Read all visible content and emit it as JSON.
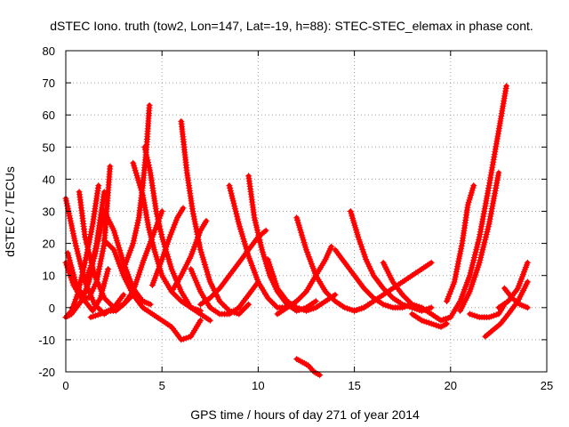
{
  "chart_data": {
    "type": "scatter",
    "title": "dSTEC Iono. truth (tow2, Lon=147, Lat=-19, h=88): STEC-STEC_elemax in phase cont.",
    "xlabel": "GPS time / hours of day 271 of year 2014",
    "ylabel": "dSTEC  / TECUs",
    "xlim": [
      0,
      25
    ],
    "ylim": [
      -20,
      80
    ],
    "x_ticks": [
      "0",
      "5",
      "10",
      "15",
      "20",
      "25"
    ],
    "y_ticks": [
      "-20",
      "-10",
      "0",
      "10",
      "20",
      "30",
      "40",
      "50",
      "60",
      "70",
      "80"
    ],
    "grid": true,
    "marker": "plus",
    "marker_color": "#ff0000",
    "series": [
      {
        "x": [
          0.0,
          0.5,
          1.0,
          1.5,
          2.0,
          2.5,
          3.0
        ],
        "values": [
          34,
          20,
          8,
          1,
          -2,
          0,
          4
        ]
      },
      {
        "x": [
          0.1,
          0.5,
          1.0,
          1.4,
          1.8,
          2.2
        ],
        "values": [
          17,
          8,
          2,
          -1,
          3,
          12
        ]
      },
      {
        "x": [
          0.0,
          0.3,
          0.8,
          1.2,
          1.6,
          2.0
        ],
        "values": [
          -3,
          -2,
          2,
          8,
          20,
          36
        ]
      },
      {
        "x": [
          0.0,
          0.4,
          0.8,
          1.2,
          1.6,
          2.0,
          2.3
        ],
        "values": [
          14,
          7,
          3,
          3,
          8,
          20,
          44
        ]
      },
      {
        "x": [
          0.0,
          0.3,
          0.6,
          1.0,
          1.4,
          1.7
        ],
        "values": [
          -3,
          -1,
          4,
          14,
          26,
          38
        ]
      },
      {
        "x": [
          0.7,
          1.0,
          1.5,
          2.0,
          2.5,
          3.0,
          3.5
        ],
        "values": [
          36,
          22,
          10,
          3,
          0,
          1,
          4
        ]
      },
      {
        "x": [
          1.0,
          1.5,
          2.0,
          2.5,
          3.0,
          3.5,
          4.0,
          4.4
        ],
        "values": [
          8,
          16,
          30,
          24,
          14,
          6,
          2,
          1
        ]
      },
      {
        "x": [
          2.0,
          2.5,
          3.0,
          3.5,
          4.0,
          4.5,
          5.0,
          5.5,
          6.0,
          6.5,
          7.0
        ],
        "values": [
          21,
          18,
          10,
          4,
          0,
          -2,
          -4,
          -6,
          -10,
          -9,
          -4
        ]
      },
      {
        "x": [
          1.3,
          1.8,
          2.2,
          2.6,
          3.0,
          3.5,
          4.0,
          4.5,
          5.0
        ],
        "values": [
          -3,
          -2,
          -1,
          -1,
          1,
          5,
          14,
          22,
          30
        ]
      },
      {
        "x": [
          3.5,
          4.0,
          4.3,
          4.6,
          5.0,
          5.5,
          6.0,
          6.5,
          7.0
        ],
        "values": [
          45,
          35,
          25,
          18,
          10,
          5,
          2,
          0,
          -1
        ]
      },
      {
        "x": [
          3.0,
          3.5,
          3.8,
          4.0,
          4.2,
          4.35
        ],
        "values": [
          12,
          20,
          28,
          38,
          50,
          63
        ]
      },
      {
        "x": [
          4.1,
          4.4,
          4.7,
          5.0,
          5.5,
          6.0,
          6.5,
          7.0,
          7.5
        ],
        "values": [
          50,
          42,
          30,
          22,
          12,
          5,
          0,
          -2,
          -4
        ]
      },
      {
        "x": [
          4.5,
          5.0,
          5.4,
          5.8,
          6.1
        ],
        "values": [
          7,
          15,
          22,
          28,
          31
        ]
      },
      {
        "x": [
          6.0,
          6.3,
          6.6,
          7.0,
          7.5,
          8.0,
          8.5,
          9.0,
          9.5
        ],
        "values": [
          58,
          42,
          30,
          18,
          8,
          2,
          -1,
          -2,
          1
        ]
      },
      {
        "x": [
          5.5,
          6.0,
          6.5,
          7.0,
          7.3
        ],
        "values": [
          5,
          10,
          16,
          24,
          27
        ]
      },
      {
        "x": [
          6.5,
          7.0,
          7.5,
          8.0,
          8.5,
          9.0,
          9.5,
          10.0
        ],
        "values": [
          12,
          5,
          0,
          -2,
          -2,
          0,
          4,
          8
        ]
      },
      {
        "x": [
          8.5,
          9.0,
          9.5,
          10.0,
          10.5,
          11.0,
          11.5,
          12.0
        ],
        "values": [
          38,
          26,
          16,
          8,
          3,
          0,
          0,
          2
        ]
      },
      {
        "x": [
          9.5,
          9.8,
          10.2,
          10.6,
          11.0,
          11.5,
          12.0,
          12.5,
          13.0
        ],
        "values": [
          41,
          28,
          18,
          10,
          5,
          1,
          -1,
          0,
          2
        ]
      },
      {
        "x": [
          7.0,
          7.5,
          8.0,
          8.5,
          9.0,
          9.5,
          10.0,
          10.4
        ],
        "values": [
          1,
          3,
          6,
          10,
          14,
          18,
          22,
          24
        ]
      },
      {
        "x": [
          10.5,
          11.0,
          11.5,
          12.0,
          12.5,
          13.0,
          13.5,
          14.0
        ],
        "values": [
          15,
          6,
          2,
          0,
          -1,
          0,
          2,
          4
        ]
      },
      {
        "x": [
          12.0,
          12.5,
          13.0,
          13.5,
          14.0,
          14.5,
          15.0,
          15.5,
          16.0
        ],
        "values": [
          28,
          18,
          10,
          5,
          2,
          0,
          -1,
          0,
          2
        ]
      },
      {
        "x": [
          11.0,
          11.5,
          12.0,
          12.5,
          13.0,
          13.5,
          13.8
        ],
        "values": [
          -2,
          0,
          2,
          5,
          10,
          15,
          19
        ]
      },
      {
        "x": [
          12.0,
          12.3,
          12.6,
          12.9,
          13.2
        ],
        "values": [
          -16,
          -17,
          -18,
          -20,
          -21
        ]
      },
      {
        "x": [
          14.0,
          14.5,
          15.0,
          15.5,
          16.0,
          16.5,
          17.0,
          17.5,
          18.0
        ],
        "values": [
          18,
          14,
          10,
          6,
          3,
          1,
          0,
          0,
          1
        ]
      },
      {
        "x": [
          14.8,
          15.2,
          15.6,
          16.0,
          16.5,
          17.0,
          17.5,
          18.0,
          18.5,
          19.0
        ],
        "values": [
          30,
          22,
          15,
          10,
          6,
          3,
          1,
          0,
          -1,
          0
        ]
      },
      {
        "x": [
          15.0,
          15.5,
          16.0,
          16.5,
          17.0,
          17.5,
          18.0,
          18.5,
          19.0
        ],
        "values": [
          -1,
          0,
          2,
          4,
          6,
          8,
          10,
          12,
          14
        ]
      },
      {
        "x": [
          16.5,
          17.0,
          17.5,
          18.0,
          18.5,
          19.0,
          19.5,
          20.0
        ],
        "values": [
          14,
          8,
          4,
          1,
          0,
          -2,
          -4,
          -3
        ]
      },
      {
        "x": [
          18.0,
          18.5,
          19.0,
          19.5,
          19.8
        ],
        "values": [
          -2,
          -4,
          -5,
          -6,
          -5
        ]
      },
      {
        "x": [
          19.5,
          20.0,
          20.5,
          21.0,
          21.5,
          22.0,
          22.5,
          22.9
        ],
        "values": [
          -4,
          -3,
          2,
          10,
          22,
          38,
          55,
          69
        ]
      },
      {
        "x": [
          19.8,
          20.2,
          20.6,
          20.9,
          21.2
        ],
        "values": [
          2,
          8,
          20,
          32,
          38
        ]
      },
      {
        "x": [
          20.5,
          21.0,
          21.5,
          22.0,
          22.5
        ],
        "values": [
          -1,
          5,
          14,
          26,
          42
        ]
      },
      {
        "x": [
          21.0,
          21.5,
          22.0,
          22.5,
          22.8
        ],
        "values": [
          -2,
          -3,
          -3,
          -2,
          1
        ]
      },
      {
        "x": [
          21.8,
          22.2,
          22.6,
          23.0,
          23.5,
          24.0
        ],
        "values": [
          -9,
          -7,
          -5,
          -2,
          2,
          8
        ]
      },
      {
        "x": [
          22.5,
          23.0,
          23.5,
          24.0
        ],
        "values": [
          0,
          2,
          6,
          14
        ]
      },
      {
        "x": [
          22.8,
          23.2,
          23.6,
          24.0
        ],
        "values": [
          6,
          3,
          1,
          0
        ]
      }
    ]
  }
}
